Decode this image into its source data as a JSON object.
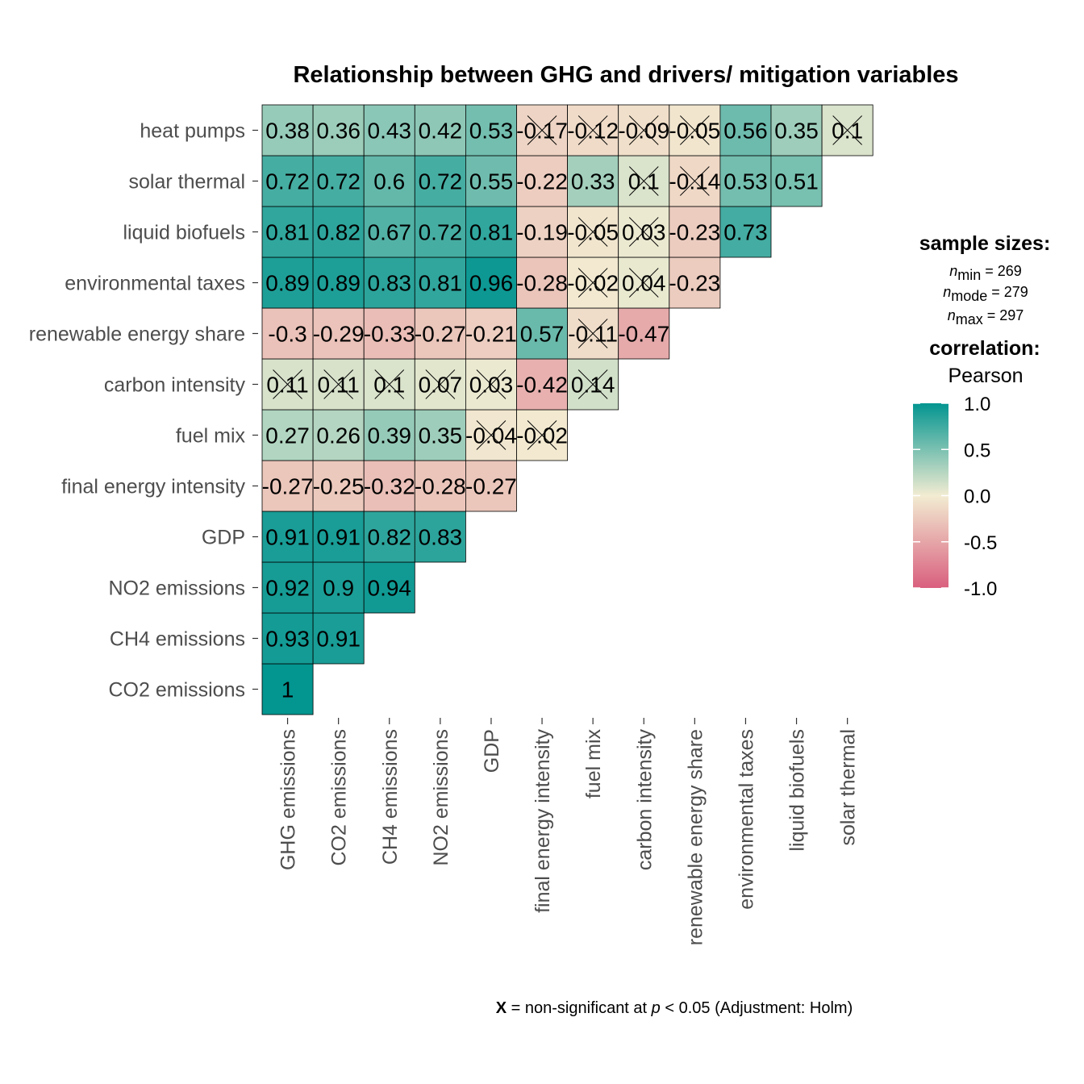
{
  "chart_data": {
    "type": "heatmap",
    "title": "Relationship between GHG and drivers/ mitigation variables",
    "x_labels": [
      "GHG emissions",
      "CO2 emissions",
      "CH4 emissions",
      "NO2 emissions",
      "GDP",
      "final energy intensity",
      "fuel mix",
      "carbon intensity",
      "renewable energy share",
      "environmental taxes",
      "liquid biofuels",
      "solar thermal"
    ],
    "y_labels": [
      "CO2 emissions",
      "CH4 emissions",
      "NO2 emissions",
      "GDP",
      "final energy intensity",
      "fuel mix",
      "carbon intensity",
      "renewable energy share",
      "environmental taxes",
      "liquid biofuels",
      "solar thermal",
      "heat pumps"
    ],
    "rows": [
      {
        "label": "CO2 emissions",
        "values": [
          1
        ],
        "labels": [
          "1"
        ],
        "nonsig": [
          false
        ]
      },
      {
        "label": "CH4 emissions",
        "values": [
          0.93,
          0.91
        ],
        "labels": [
          "0.93",
          "0.91"
        ],
        "nonsig": [
          false,
          false
        ]
      },
      {
        "label": "NO2 emissions",
        "values": [
          0.92,
          0.9,
          0.94
        ],
        "labels": [
          "0.92",
          "0.9",
          "0.94"
        ],
        "nonsig": [
          false,
          false,
          false
        ]
      },
      {
        "label": "GDP",
        "values": [
          0.91,
          0.91,
          0.82,
          0.83
        ],
        "labels": [
          "0.91",
          "0.91",
          "0.82",
          "0.83"
        ],
        "nonsig": [
          false,
          false,
          false,
          false
        ]
      },
      {
        "label": "final energy intensity",
        "values": [
          -0.27,
          -0.25,
          -0.32,
          -0.28,
          -0.27
        ],
        "labels": [
          "-0.27",
          "-0.25",
          "-0.32",
          "-0.28",
          "-0.27"
        ],
        "nonsig": [
          false,
          false,
          false,
          false,
          false
        ]
      },
      {
        "label": "fuel mix",
        "values": [
          0.27,
          0.26,
          0.39,
          0.35,
          -0.04,
          -0.02
        ],
        "labels": [
          "0.27",
          "0.26",
          "0.39",
          "0.35",
          "-0.04",
          "-0.02"
        ],
        "nonsig": [
          false,
          false,
          false,
          false,
          true,
          true
        ]
      },
      {
        "label": "carbon intensity",
        "values": [
          0.11,
          0.11,
          0.1,
          0.07,
          0.03,
          -0.42,
          0.14
        ],
        "labels": [
          "0.11",
          "0.11",
          "0.1",
          "0.07",
          "0.03",
          "-0.42",
          "0.14"
        ],
        "nonsig": [
          true,
          true,
          true,
          true,
          true,
          false,
          true
        ]
      },
      {
        "label": "renewable energy share",
        "values": [
          -0.3,
          -0.29,
          -0.33,
          -0.27,
          -0.21,
          0.57,
          -0.11,
          -0.47
        ],
        "labels": [
          "-0.3",
          "-0.29",
          "-0.33",
          "-0.27",
          "-0.21",
          "0.57",
          "-0.11",
          "-0.47"
        ],
        "nonsig": [
          false,
          false,
          false,
          false,
          false,
          false,
          true,
          false
        ]
      },
      {
        "label": "environmental taxes",
        "values": [
          0.89,
          0.89,
          0.83,
          0.81,
          0.96,
          -0.28,
          -0.02,
          0.04,
          -0.23
        ],
        "labels": [
          "0.89",
          "0.89",
          "0.83",
          "0.81",
          "0.96",
          "-0.28",
          "-0.02",
          "0.04",
          "-0.23"
        ],
        "nonsig": [
          false,
          false,
          false,
          false,
          false,
          false,
          true,
          true,
          false
        ]
      },
      {
        "label": "liquid biofuels",
        "values": [
          0.81,
          0.82,
          0.67,
          0.72,
          0.81,
          -0.19,
          -0.05,
          0.03,
          -0.23,
          0.73
        ],
        "labels": [
          "0.81",
          "0.82",
          "0.67",
          "0.72",
          "0.81",
          "-0.19",
          "-0.05",
          "0.03",
          "-0.23",
          "0.73"
        ],
        "nonsig": [
          false,
          false,
          false,
          false,
          false,
          false,
          true,
          true,
          false,
          false
        ]
      },
      {
        "label": "solar thermal",
        "values": [
          0.72,
          0.72,
          0.6,
          0.72,
          0.55,
          -0.22,
          0.33,
          0.1,
          -0.14,
          0.53,
          0.51
        ],
        "labels": [
          "0.72",
          "0.72",
          "0.6",
          "0.72",
          "0.55",
          "-0.22",
          "0.33",
          "0.1",
          "-0.14",
          "0.53",
          "0.51"
        ],
        "nonsig": [
          false,
          false,
          false,
          false,
          false,
          false,
          false,
          true,
          true,
          false,
          false
        ]
      },
      {
        "label": "heat pumps",
        "values": [
          0.38,
          0.36,
          0.43,
          0.42,
          0.53,
          -0.17,
          -0.12,
          -0.09,
          -0.05,
          0.56,
          0.35,
          0.1
        ],
        "labels": [
          "0.38",
          "0.36",
          "0.43",
          "0.42",
          "0.53",
          "-0.17",
          "-0.12",
          "-0.09",
          "-0.05",
          "0.56",
          "0.35",
          "0.1"
        ],
        "nonsig": [
          false,
          false,
          false,
          false,
          false,
          true,
          true,
          true,
          true,
          false,
          false,
          true
        ]
      }
    ],
    "color_scale": {
      "min": -1.0,
      "mid": 0.0,
      "max": 1.0,
      "low_color": "#d95f7e",
      "mid_color": "#f2ecd2",
      "high_color": "#039590",
      "ticks": [
        "1.0",
        "0.5",
        "0.0",
        "-0.5",
        "-1.0"
      ],
      "tick_values": [
        1.0,
        0.5,
        0.0,
        -0.5,
        -1.0
      ]
    },
    "legend": {
      "sample_title": "sample sizes:",
      "n_min": {
        "n": "n",
        "sub": "min",
        "value": " = 269"
      },
      "n_mode": {
        "n": "n",
        "sub": "mode",
        "value": " = 279"
      },
      "n_max": {
        "n": "n",
        "sub": "max",
        "value": " = 297"
      },
      "corr_title": "correlation:",
      "corr_method": "Pearson",
      "placement": "right"
    },
    "caption": {
      "x": "X",
      "text1": " = non-significant at ",
      "p": "p",
      "text2": " < 0.05 (Adjustment: Holm)"
    }
  }
}
